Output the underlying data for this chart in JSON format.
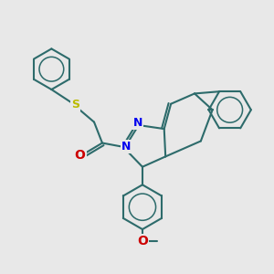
{
  "bg_color": "#e8e8e8",
  "bond_color": "#2d6b6b",
  "bond_lw": 1.5,
  "N_color": "#0000ee",
  "O_color": "#cc0000",
  "S_color": "#bbbb00",
  "fig_w": 3.0,
  "fig_h": 3.0,
  "dpi": 100,
  "xlim": [
    0,
    10
  ],
  "ylim": [
    0,
    10
  ]
}
